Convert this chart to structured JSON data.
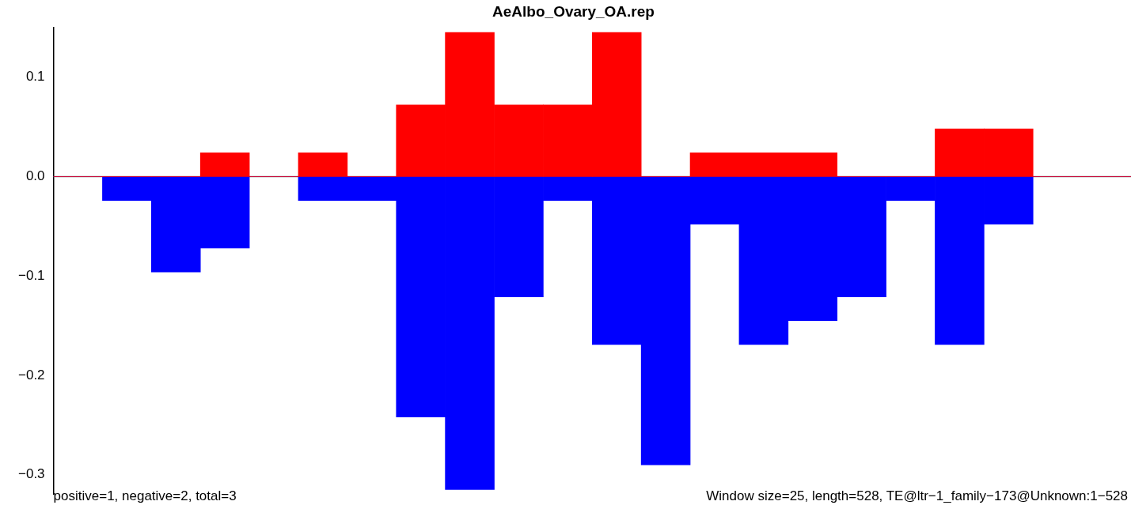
{
  "chart_data": {
    "type": "bar",
    "title": "AeAlbo_Ovary_OA.rep",
    "categories": [
      null,
      null,
      null,
      null,
      null,
      null,
      null,
      null,
      null,
      null,
      null,
      null,
      null,
      null,
      null,
      null,
      null,
      null,
      null,
      null,
      null,
      null
    ],
    "stacked": true,
    "series": [
      {
        "color": "#ff0000",
        "values": [
          0,
          0,
          0,
          0.024,
          0,
          0.024,
          0,
          0.072,
          0.145,
          0.072,
          0.072,
          0.145,
          0,
          0.024,
          0.024,
          0.024,
          0,
          0,
          0.048,
          0.048,
          0,
          0
        ]
      },
      {
        "color": "#0000ff",
        "values": [
          0,
          -0.024,
          -0.096,
          -0.072,
          0,
          -0.024,
          -0.024,
          -0.242,
          -0.315,
          -0.121,
          -0.024,
          -0.169,
          -0.29,
          -0.048,
          -0.169,
          -0.145,
          -0.121,
          -0.024,
          -0.169,
          -0.048,
          0,
          0
        ]
      }
    ],
    "ylim": [
      -0.32,
      0.15
    ],
    "yticks": [
      {
        "value": -0.3,
        "label": "−0.3"
      },
      {
        "value": -0.2,
        "label": "−0.2"
      },
      {
        "value": -0.1,
        "label": "−0.1"
      },
      {
        "value": 0,
        "label": "0.0"
      },
      0.1
    ],
    "tick_labels": "y",
    "grid": false,
    "legend": false,
    "ref_lines": [
      {
        "axis": "y",
        "value": 0,
        "color": "#808080"
      }
    ],
    "annotations": [
      "positive=1, negative=2, total=3",
      "Window size=25, length=528, TE@ltr−1_family−173@Unknown:1−528"
    ]
  }
}
